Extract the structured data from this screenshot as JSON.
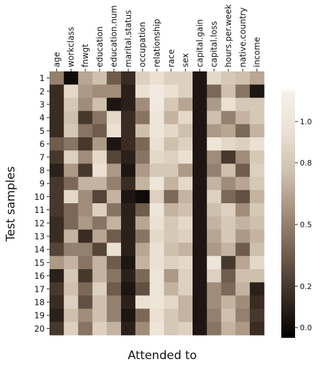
{
  "chart_data": {
    "type": "heatmap",
    "xlabel": "Attended to",
    "ylabel": "Test samples",
    "x_categories": [
      "age",
      "workclass",
      "fnwgt",
      "education",
      "education.num",
      "marital.status",
      "occupation",
      "relationship",
      "race",
      "sex",
      "capital.gain",
      "capital.loss",
      "hours.per.week",
      "native.country",
      "income"
    ],
    "y_categories": [
      "1",
      "2",
      "3",
      "4",
      "5",
      "6",
      "7",
      "8",
      "9",
      "10",
      "11",
      "12",
      "13",
      "14",
      "15",
      "16",
      "17",
      "18",
      "19",
      "20"
    ],
    "colorbar": {
      "ticks": [
        0.0,
        0.2,
        0.5,
        0.8,
        1.0
      ],
      "tick_labels": [
        "0.0",
        "0.2",
        "0.5",
        "0.8",
        "1.0"
      ],
      "range": [
        -0.05,
        1.15
      ]
    },
    "colormap": [
      "#000000",
      "#3a2c23",
      "#6f5c4c",
      "#a08c79",
      "#cfc0ad",
      "#ebe0d2",
      "#f7f2ec"
    ],
    "values": [
      [
        0.5,
        0.0,
        0.65,
        0.75,
        0.35,
        0.15,
        0.85,
        0.95,
        0.85,
        0.85,
        0.05,
        0.9,
        0.8,
        0.75,
        0.65
      ],
      [
        0.15,
        0.9,
        0.6,
        0.55,
        0.55,
        0.1,
        0.95,
        1.05,
        0.95,
        0.85,
        0.05,
        0.4,
        0.75,
        0.45,
        0.05
      ],
      [
        0.15,
        0.8,
        0.55,
        0.75,
        0.05,
        0.1,
        0.55,
        1.05,
        0.8,
        0.65,
        0.05,
        0.6,
        0.95,
        0.8,
        0.8
      ],
      [
        0.15,
        0.75,
        0.2,
        0.45,
        0.9,
        0.15,
        0.45,
        1.0,
        0.7,
        0.9,
        0.05,
        0.75,
        0.5,
        0.7,
        0.8
      ],
      [
        0.15,
        0.8,
        0.45,
        0.35,
        0.95,
        0.15,
        0.75,
        1.0,
        0.9,
        0.75,
        0.05,
        0.6,
        0.65,
        0.4,
        0.7
      ],
      [
        0.35,
        0.45,
        0.2,
        0.6,
        0.05,
        0.15,
        0.4,
        0.95,
        0.75,
        0.85,
        0.05,
        1.0,
        0.9,
        0.85,
        0.95
      ],
      [
        0.2,
        0.85,
        0.55,
        0.9,
        0.25,
        0.1,
        0.45,
        0.9,
        0.85,
        0.95,
        0.05,
        0.55,
        0.2,
        0.55,
        0.8
      ],
      [
        0.1,
        0.6,
        0.2,
        0.95,
        0.6,
        0.05,
        0.6,
        0.8,
        0.8,
        0.6,
        0.05,
        0.5,
        0.75,
        0.35,
        0.85
      ],
      [
        0.2,
        0.4,
        0.7,
        0.7,
        0.5,
        0.15,
        0.7,
        1.0,
        0.7,
        0.9,
        0.05,
        0.7,
        0.55,
        0.65,
        0.8
      ],
      [
        0.2,
        0.9,
        0.55,
        0.25,
        0.7,
        0.05,
        0.0,
        0.85,
        0.4,
        0.7,
        0.05,
        0.85,
        0.4,
        0.3,
        0.7
      ],
      [
        0.2,
        0.4,
        0.55,
        0.85,
        0.45,
        0.1,
        0.35,
        1.0,
        0.7,
        0.75,
        0.05,
        0.75,
        0.85,
        0.55,
        0.8
      ],
      [
        0.15,
        0.4,
        0.6,
        0.45,
        0.7,
        0.1,
        0.65,
        0.95,
        0.8,
        0.9,
        0.05,
        0.7,
        0.8,
        0.7,
        0.75
      ],
      [
        0.15,
        0.7,
        0.15,
        0.65,
        0.35,
        0.1,
        0.45,
        0.9,
        0.8,
        0.85,
        0.05,
        0.65,
        0.8,
        0.6,
        0.7
      ],
      [
        0.25,
        0.5,
        0.5,
        0.25,
        0.95,
        0.1,
        0.65,
        0.95,
        0.75,
        0.7,
        0.05,
        0.6,
        0.7,
        0.35,
        0.75
      ],
      [
        0.6,
        0.7,
        0.45,
        0.7,
        0.35,
        0.05,
        0.7,
        0.95,
        0.85,
        0.9,
        0.05,
        1.0,
        0.2,
        0.65,
        0.9
      ],
      [
        0.1,
        0.8,
        0.2,
        0.7,
        0.45,
        0.1,
        0.4,
        1.0,
        0.6,
        0.85,
        0.05,
        0.85,
        0.35,
        0.75,
        0.75
      ],
      [
        0.2,
        0.75,
        0.4,
        0.85,
        0.35,
        0.05,
        0.3,
        1.0,
        0.7,
        0.85,
        0.05,
        0.55,
        0.4,
        0.7,
        0.1
      ],
      [
        0.15,
        0.85,
        0.3,
        0.75,
        0.5,
        0.1,
        0.95,
        1.0,
        0.9,
        0.7,
        0.05,
        0.55,
        0.7,
        0.55,
        0.15
      ],
      [
        0.1,
        0.75,
        0.55,
        0.75,
        0.5,
        0.05,
        0.4,
        0.95,
        0.8,
        0.7,
        0.05,
        0.5,
        0.75,
        0.5,
        0.2
      ],
      [
        0.2,
        0.85,
        0.45,
        0.85,
        0.7,
        0.1,
        0.55,
        1.0,
        0.8,
        0.85,
        0.05,
        0.45,
        0.7,
        0.6,
        0.15
      ]
    ]
  }
}
